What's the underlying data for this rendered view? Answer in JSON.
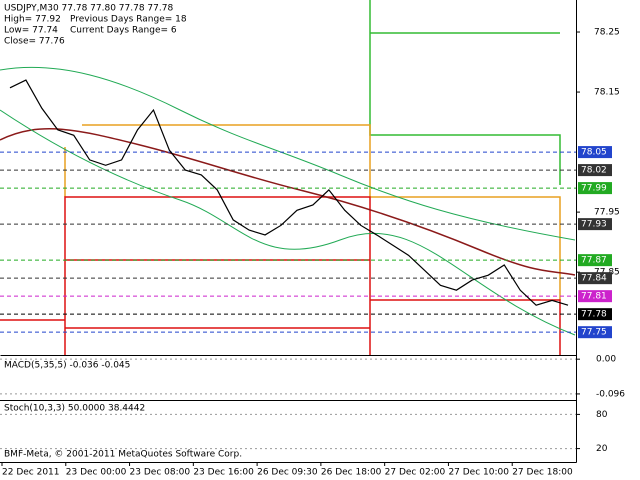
{
  "chart_data": {
    "type": "line",
    "header": {
      "symbol": "USDJPY,M30  77.78 77.80 77.78 77.78",
      "high": "High= 77.92",
      "prev_range": "Previous Days Range= 18",
      "low": "Low= 77.74",
      "cur_range": "Current Days Range= 6",
      "close": "Close= 77.76"
    },
    "x": [
      4,
      12,
      20,
      28,
      36,
      44,
      52,
      60,
      68,
      76,
      84,
      92,
      100,
      108,
      116,
      124,
      132,
      140,
      148,
      156,
      164,
      172,
      180,
      188,
      196,
      204,
      212,
      220,
      228,
      236,
      244,
      252,
      260,
      268,
      276,
      284
    ],
    "series": [
      {
        "name": "USDJPY",
        "color": "#000000",
        "values": [
          78.157,
          78.17,
          78.123,
          78.087,
          78.078,
          78.037,
          78.028,
          78.037,
          78.087,
          78.12,
          78.053,
          78.02,
          78.012,
          77.987,
          77.937,
          77.92,
          77.912,
          77.928,
          77.953,
          77.962,
          77.987,
          77.953,
          77.928,
          77.912,
          77.895,
          77.878,
          77.853,
          77.828,
          77.82,
          77.837,
          77.845,
          77.862,
          77.82,
          77.795,
          77.803,
          77.795
        ]
      }
    ],
    "xlim": [
      0,
      287
    ],
    "xticks": [
      {
        "value": 0,
        "label": "22 Dec 2011"
      },
      {
        "value": 32,
        "label": "23 Dec 00:00"
      },
      {
        "value": 64,
        "label": "23 Dec 08:00"
      },
      {
        "value": 96,
        "label": "23 Dec 16:00"
      },
      {
        "value": 128,
        "label": "26 Dec 09:30"
      },
      {
        "value": 160,
        "label": "26 Dec 18:00"
      },
      {
        "value": 192,
        "label": "27 Dec 02:00"
      },
      {
        "value": 224,
        "label": "27 Dec 10:00"
      },
      {
        "value": 256,
        "label": "27 Dec 18:00"
      }
    ],
    "ylim": [
      77.712,
      78.3
    ],
    "yticks": [
      78.25,
      78.15,
      77.95,
      77.85
    ],
    "levels": [
      78.05,
      78.02,
      77.99,
      77.93,
      77.87,
      77.84,
      77.81,
      77.78,
      77.75
    ],
    "level_colors": [
      "#2244cc",
      "#333333",
      "#22aa22",
      "#333333",
      "#22aa22",
      "#333333",
      "#cc22cc",
      "#000000",
      "#2244cc"
    ],
    "macd": {
      "title": "MACD(5,35,5) -0.036 -0.045",
      "ylim": [
        -0.11,
        0.006
      ],
      "yticks": [
        {
          "value": 0,
          "label": "0.00"
        },
        {
          "value": -0.096,
          "label": "-0.096"
        }
      ]
    },
    "stoch": {
      "title": "Stoch(10,3,3) 50.0000 38.4442",
      "ylim": [
        0,
        100
      ],
      "yticks": [
        80,
        20
      ]
    },
    "copyright": "BMF-Meta, © 2001-2011 MetaQuotes Software Corp."
  }
}
